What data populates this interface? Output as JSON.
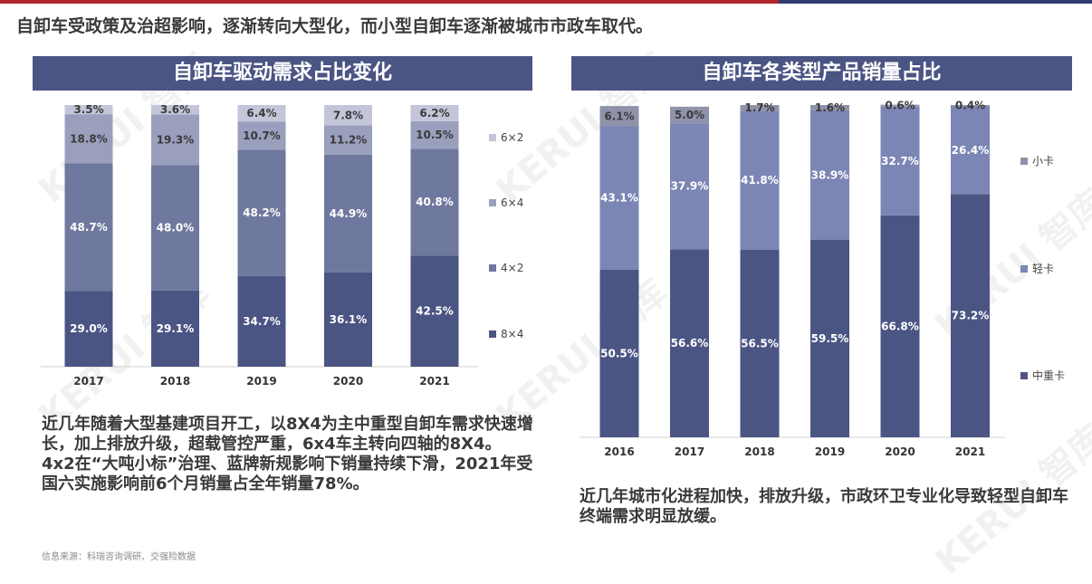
{
  "headline": "自卸车受政策及治超影响，逐渐转向大型化，而小型自卸车逐渐被城市市政车取代。",
  "left_title": "自卸车驱动需求占比变化",
  "right_title": "自卸车各类型产品销量占比",
  "left_text_lines": [
    "近几年随着大型基建项目开工，以8X4为主中重型自卸车需求快速增长，加上排放升级，超载管控严重，6x4车主转向四轴的8X4。",
    "4x2在“大吨小标”治理、蓝牌新规影响下销量持续下滑，2021年受国六实施影响前6个月销量占全年销量78%。"
  ],
  "right_text": "近几年城市化进程加快，排放升级，市政环卫专业化导致轻型自卸车终端需求明显放缓。",
  "source": "信息来源：科瑞咨询调研、交强险数据",
  "watermark": "KERUI 智库",
  "colors": {
    "title_bg": "#4b5584",
    "top_red": "#b3262b",
    "top_blue": "#2f3b6e"
  },
  "chart_data": [
    {
      "type": "bar",
      "stacked": true,
      "unit": "%",
      "categories": [
        "2017",
        "2018",
        "2019",
        "2020",
        "2021"
      ],
      "series": [
        {
          "name": "8×4",
          "color": "#4b5584",
          "label_color": "#ffffff",
          "values": [
            29.0,
            29.1,
            34.7,
            36.1,
            42.5
          ]
        },
        {
          "name": "4×2",
          "color": "#6f789e",
          "label_color": "#ffffff",
          "values": [
            48.7,
            48.0,
            48.2,
            44.9,
            40.8
          ]
        },
        {
          "name": "6×4",
          "color": "#9a9fbd",
          "label_color": "#3a3a3a",
          "values": [
            18.8,
            19.3,
            10.7,
            11.2,
            10.5
          ]
        },
        {
          "name": "6×2",
          "color": "#c3c6d9",
          "label_color": "#3a3a3a",
          "values": [
            3.5,
            3.6,
            6.4,
            7.8,
            6.2
          ]
        }
      ],
      "legend_order": [
        "6×2",
        "6×4",
        "4×2",
        "8×4"
      ],
      "legend_position": "right",
      "ylim": [
        0,
        100
      ],
      "grid": false
    },
    {
      "type": "bar",
      "stacked": true,
      "unit": "%",
      "categories": [
        "2016",
        "2017",
        "2018",
        "2019",
        "2020",
        "2021"
      ],
      "series": [
        {
          "name": "中重卡",
          "color": "#4b5584",
          "label_color": "#ffffff",
          "values": [
            50.5,
            56.6,
            56.5,
            59.5,
            66.8,
            73.2
          ]
        },
        {
          "name": "轻卡",
          "color": "#7b86b5",
          "label_color": "#ffffff",
          "values": [
            43.1,
            37.9,
            41.8,
            38.9,
            32.7,
            26.4
          ]
        },
        {
          "name": "小卡",
          "color": "#8f93aa",
          "label_color": "#3a3a3a",
          "values": [
            6.1,
            5.0,
            1.7,
            1.6,
            0.6,
            0.4
          ]
        }
      ],
      "legend_order": [
        "小卡",
        "轻卡",
        "中重卡"
      ],
      "legend_position": "right",
      "ylim": [
        0,
        100
      ],
      "grid": false
    }
  ]
}
